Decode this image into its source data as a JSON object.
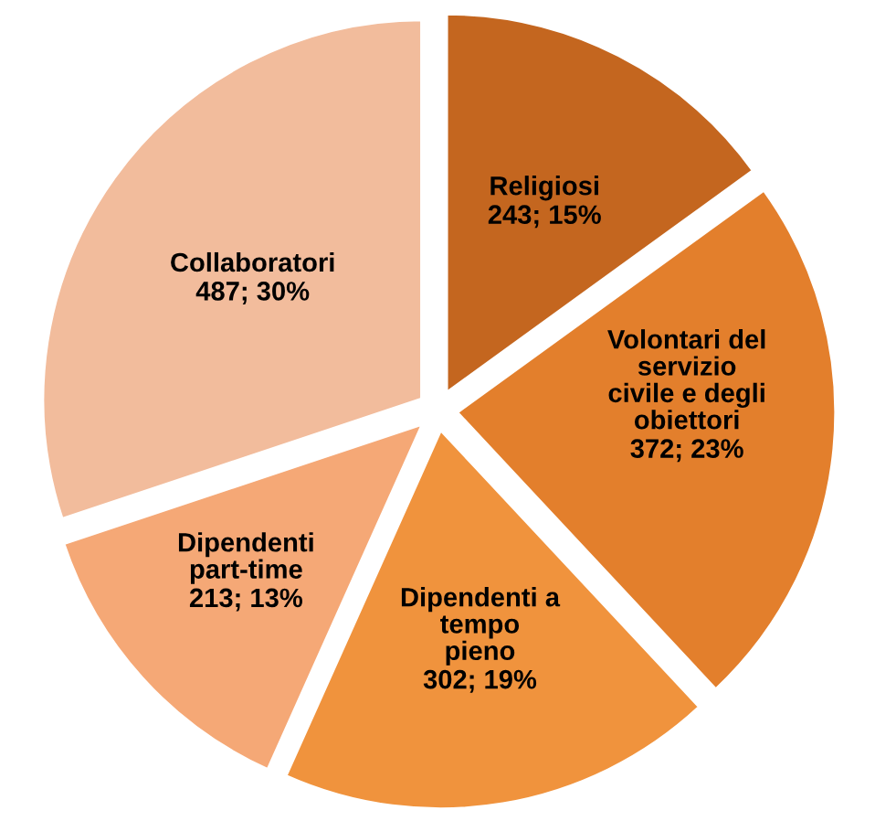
{
  "chart_data": {
    "type": "pie",
    "categories": [
      "Religiosi",
      "Volontari del\nservizio\ncivile e degli\nobiettori",
      "Dipendenti a\ntempo\npieno",
      "Dipendenti\npart-time",
      "Collaboratori"
    ],
    "values": [
      243,
      372,
      302,
      213,
      487
    ],
    "colors": [
      "#c4661f",
      "#e37f2c",
      "#f0933d",
      "#f5a876",
      "#f2bc9c"
    ],
    "value_labels": [
      "243; 15%",
      "372; 23%",
      "302; 19%",
      "213; 13%",
      "487; 30%"
    ]
  }
}
